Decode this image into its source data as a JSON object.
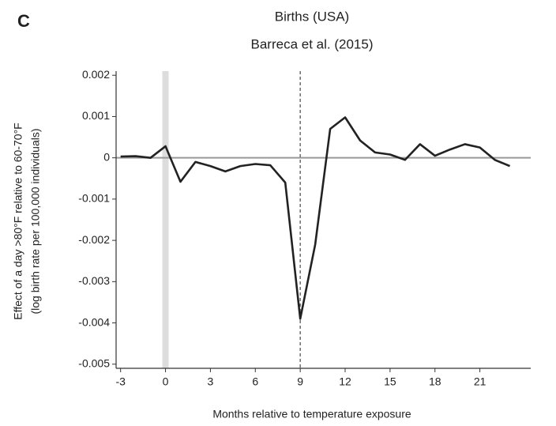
{
  "chart_data": {
    "type": "line",
    "panel_label": "C",
    "title": "Births (USA)",
    "subtitle": "Barreca et al. (2015)",
    "xlabel": "Months relative to temperature exposure",
    "ylabel": [
      "Effect of a day >80°F relative to 60-70°F",
      "(log birth rate per 100,000 individuals)"
    ],
    "x": [
      -3,
      -2,
      -1,
      0,
      1,
      2,
      3,
      4,
      5,
      6,
      7,
      8,
      9,
      10,
      11,
      12,
      13,
      14,
      15,
      16,
      17,
      18,
      19,
      20,
      21,
      22,
      23
    ],
    "values": [
      3e-05,
      4e-05,
      0.0,
      0.00028,
      -0.00058,
      -0.0001,
      -0.0002,
      -0.00033,
      -0.0002,
      -0.00015,
      -0.00018,
      -0.0006,
      -0.0039,
      -0.0021,
      0.0007,
      0.00098,
      0.00042,
      0.00013,
      8e-05,
      -5e-05,
      0.00033,
      5e-05,
      0.0002,
      0.00033,
      0.00025,
      -5e-05,
      -0.0002
    ],
    "color": "#222222",
    "xlim": [
      -3.3,
      23.5
    ],
    "ylim": [
      -0.0051,
      0.0021
    ],
    "xticks": [
      -3,
      0,
      3,
      6,
      9,
      12,
      15,
      18,
      21
    ],
    "yticks": [
      0.002,
      0.001,
      0,
      -0.001,
      -0.002,
      -0.003,
      -0.004,
      -0.005
    ],
    "shaded_x": 0,
    "vline_x": 9,
    "hline_y": 0
  }
}
